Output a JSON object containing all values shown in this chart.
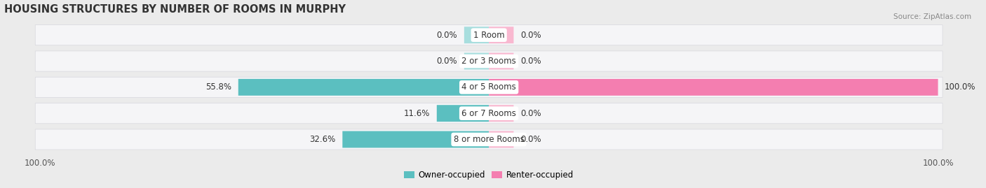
{
  "title": "HOUSING STRUCTURES BY NUMBER OF ROOMS IN MURPHY",
  "source": "Source: ZipAtlas.com",
  "categories": [
    "1 Room",
    "2 or 3 Rooms",
    "4 or 5 Rooms",
    "6 or 7 Rooms",
    "8 or more Rooms"
  ],
  "owner_values": [
    0.0,
    0.0,
    55.8,
    11.6,
    32.6
  ],
  "renter_values": [
    0.0,
    0.0,
    100.0,
    0.0,
    0.0
  ],
  "owner_color": "#5bbfc0",
  "renter_color": "#f47eb0",
  "background_color": "#ebebeb",
  "bar_bg_color": "#f5f5f7",
  "bar_bg_edge_color": "#d8d8de",
  "zero_stub_owner": "#a8dede",
  "zero_stub_renter": "#f9b8d0",
  "bar_height": 0.62,
  "xlim": 100,
  "legend_owner": "Owner-occupied",
  "legend_renter": "Renter-occupied",
  "title_fontsize": 10.5,
  "label_fontsize": 8.5,
  "tick_fontsize": 8.5,
  "source_fontsize": 7.5,
  "zero_stub_size": 5.5
}
